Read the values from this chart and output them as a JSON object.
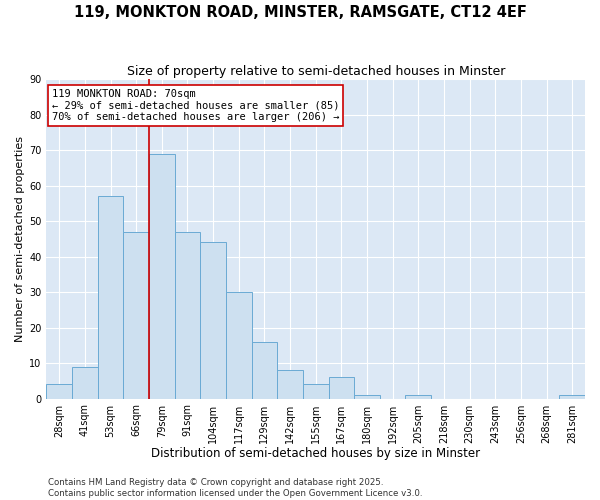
{
  "title": "119, MONKTON ROAD, MINSTER, RAMSGATE, CT12 4EF",
  "subtitle": "Size of property relative to semi-detached houses in Minster",
  "xlabel": "Distribution of semi-detached houses by size in Minster",
  "ylabel": "Number of semi-detached properties",
  "categories": [
    "28sqm",
    "41sqm",
    "53sqm",
    "66sqm",
    "79sqm",
    "91sqm",
    "104sqm",
    "117sqm",
    "129sqm",
    "142sqm",
    "155sqm",
    "167sqm",
    "180sqm",
    "192sqm",
    "205sqm",
    "218sqm",
    "230sqm",
    "243sqm",
    "256sqm",
    "268sqm",
    "281sqm"
  ],
  "values": [
    4,
    9,
    57,
    47,
    69,
    47,
    44,
    30,
    16,
    8,
    4,
    6,
    1,
    0,
    1,
    0,
    0,
    0,
    0,
    0,
    1
  ],
  "bar_color": "#cde0f0",
  "bar_edge_color": "#6aaad4",
  "vline_color": "#cc0000",
  "vline_x": 3.5,
  "annotation_text": "119 MONKTON ROAD: 70sqm\n← 29% of semi-detached houses are smaller (85)\n70% of semi-detached houses are larger (206) →",
  "annotation_box_facecolor": "#ffffff",
  "annotation_box_edgecolor": "#cc0000",
  "ylim": [
    0,
    90
  ],
  "yticks": [
    0,
    10,
    20,
    30,
    40,
    50,
    60,
    70,
    80,
    90
  ],
  "fig_bg": "#ffffff",
  "ax_bg": "#dce8f5",
  "grid_color": "#ffffff",
  "footer": "Contains HM Land Registry data © Crown copyright and database right 2025.\nContains public sector information licensed under the Open Government Licence v3.0.",
  "title_fontsize": 10.5,
  "subtitle_fontsize": 9,
  "xlabel_fontsize": 8.5,
  "ylabel_fontsize": 8,
  "tick_fontsize": 7,
  "annot_fontsize": 7.5,
  "footer_fontsize": 6.2
}
